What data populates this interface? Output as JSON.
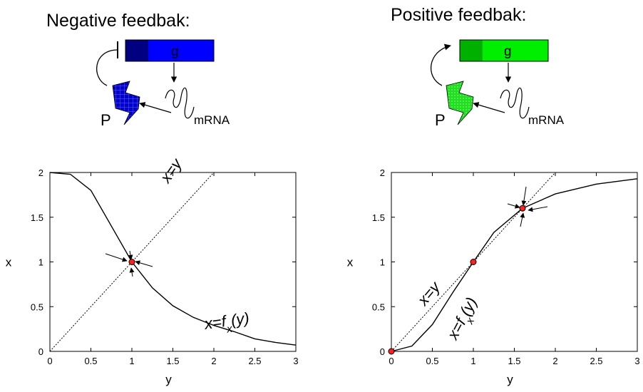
{
  "panels": [
    {
      "title": "Negative feedbak:",
      "gene_label": "g",
      "protein_label": "P",
      "mrna_label": "mRNA",
      "feedback": "repression",
      "colors": {
        "gene_dark": "#000080",
        "gene_main": "#0000ff",
        "protein": "#0000c8"
      }
    },
    {
      "title": "Positive feedbak:",
      "gene_label": "g",
      "protein_label": "P",
      "mrna_label": "mRNA",
      "feedback": "activation",
      "colors": {
        "gene_dark": "#00b000",
        "gene_main": "#00ee00",
        "protein": "#22dd22"
      }
    }
  ],
  "chart_data": [
    {
      "type": "line",
      "xlabel": "y",
      "ylabel": "x",
      "xlim": [
        0,
        3
      ],
      "ylim": [
        0,
        2
      ],
      "xticks": [
        "0",
        "0.5",
        "1",
        "1.5",
        "2",
        "2.5",
        "3"
      ],
      "yticks": [
        "0",
        "0.5",
        "1",
        "1.5",
        "2"
      ],
      "grid": false,
      "series": [
        {
          "name": "x=f_x(y)",
          "style": "solid",
          "points": [
            [
              0,
              2
            ],
            [
              0.25,
              1.98
            ],
            [
              0.5,
              1.8
            ],
            [
              0.75,
              1.4
            ],
            [
              1,
              1
            ],
            [
              1.25,
              0.71
            ],
            [
              1.5,
              0.51
            ],
            [
              1.75,
              0.38
            ],
            [
              2,
              0.29
            ],
            [
              2.25,
              0.22
            ],
            [
              2.5,
              0.14
            ],
            [
              2.75,
              0.1
            ],
            [
              3,
              0.07
            ]
          ]
        },
        {
          "name": "x=y",
          "style": "dotted",
          "points": [
            [
              0,
              0
            ],
            [
              2,
              2
            ]
          ]
        }
      ],
      "fixed_points": [
        [
          1,
          1
        ]
      ],
      "annotations": {
        "line": "x=y",
        "curve_main": "x=f",
        "curve_sub": "x",
        "curve_arg": "(y)"
      }
    },
    {
      "type": "line",
      "xlabel": "y",
      "ylabel": "x",
      "xlim": [
        0,
        3
      ],
      "ylim": [
        0,
        2
      ],
      "xticks": [
        "0",
        "0.5",
        "1",
        "1.5",
        "2",
        "2.5",
        "3"
      ],
      "yticks": [
        "0",
        "0.5",
        "1",
        "1.5",
        "2"
      ],
      "grid": false,
      "series": [
        {
          "name": "x=f_x(y)",
          "style": "solid",
          "points": [
            [
              0,
              0
            ],
            [
              0.25,
              0.06
            ],
            [
              0.5,
              0.3
            ],
            [
              0.75,
              0.66
            ],
            [
              1,
              1
            ],
            [
              1.25,
              1.33
            ],
            [
              1.6,
              1.6
            ],
            [
              2,
              1.76
            ],
            [
              2.5,
              1.87
            ],
            [
              3,
              1.93
            ]
          ]
        },
        {
          "name": "x=y",
          "style": "dotted",
          "points": [
            [
              0,
              0
            ],
            [
              2,
              2
            ]
          ]
        }
      ],
      "fixed_points": [
        [
          0,
          0
        ],
        [
          1,
          1
        ],
        [
          1.6,
          1.6
        ]
      ],
      "annotations": {
        "line": "x=y",
        "curve_main": "x=f",
        "curve_sub": "x",
        "curve_arg": "(y)"
      }
    }
  ]
}
